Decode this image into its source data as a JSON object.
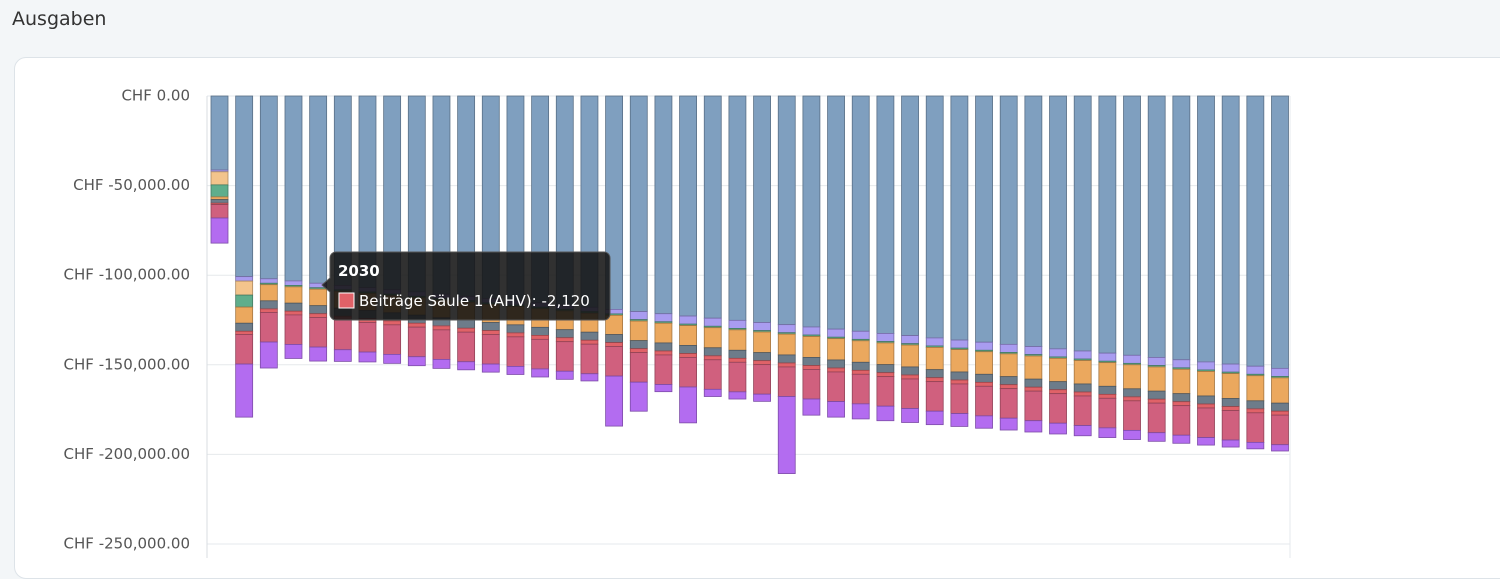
{
  "header": {
    "title": "Ausgaben"
  },
  "chart_data": {
    "type": "stacked-bar",
    "categories": [
      null,
      null,
      null,
      null,
      "2030",
      null,
      null,
      null,
      null,
      null,
      null,
      null,
      null,
      null,
      null,
      null,
      null,
      null,
      null,
      null,
      null,
      null,
      null,
      null,
      null,
      null,
      null,
      null,
      null,
      null,
      null,
      null,
      null,
      null,
      null,
      null,
      null,
      null,
      null,
      null,
      null,
      null,
      null,
      null
    ],
    "ylim": [
      -250000,
      0
    ],
    "yticks": [
      {
        "value": 0,
        "label": "CHF 0.00"
      },
      {
        "value": -50000,
        "label": "CHF -50,000.00"
      },
      {
        "value": -100000,
        "label": "CHF -100,000.00"
      },
      {
        "value": -150000,
        "label": "CHF -150,000.00"
      },
      {
        "value": -200000,
        "label": "CHF -200,000.00"
      },
      {
        "value": -250000,
        "label": "CHF -250,000.00"
      }
    ],
    "grid": true,
    "series": [
      {
        "color": "#7f9fbf",
        "values": [
          -41300,
          -100800,
          -102000,
          -103200,
          -104500,
          -105700,
          -106900,
          -108100,
          -109300,
          -110600,
          -111800,
          -113000,
          -114200,
          -115400,
          -116600,
          -117900,
          -119100,
          -120300,
          -121500,
          -122800,
          -124000,
          -125200,
          -126400,
          -127600,
          -128900,
          -130100,
          -131300,
          -132500,
          -133700,
          -135000,
          -136200,
          -137400,
          -138600,
          -139800,
          -141100,
          -142300,
          -143500,
          -144700,
          -145900,
          -147200,
          -148400,
          -149600,
          -150800,
          -152000
        ]
      },
      {
        "color": "#a99cf0",
        "values": [
          -1000,
          -2500,
          -2500,
          -2500,
          -2500,
          -2500,
          -2500,
          -2500,
          -2500,
          -2500,
          -2500,
          -2500,
          -2500,
          -2500,
          -2500,
          -2500,
          -2500,
          -4500,
          -4500,
          -4500,
          -4500,
          -4500,
          -4500,
          -4500,
          -4500,
          -4500,
          -4500,
          -4500,
          -4500,
          -4500,
          -4500,
          -4500,
          -4500,
          -4500,
          -4500,
          -4500,
          -4500,
          -4500,
          -4500,
          -4500,
          -4500,
          -4500,
          -4500,
          -4500
        ]
      },
      {
        "color": "#f3c48c",
        "values": [
          -7300,
          -7800,
          0,
          0,
          0,
          0,
          0,
          0,
          0,
          0,
          0,
          0,
          0,
          0,
          0,
          0,
          0,
          0,
          0,
          0,
          0,
          0,
          0,
          0,
          0,
          0,
          0,
          0,
          0,
          0,
          0,
          0,
          0,
          0,
          0,
          0,
          0,
          0,
          0,
          0,
          0,
          0,
          0,
          0
        ]
      },
      {
        "color": "#5fae8c",
        "values": [
          -6700,
          -6700,
          -800,
          -800,
          -800,
          -800,
          -800,
          -800,
          -800,
          -800,
          -800,
          -800,
          -800,
          -800,
          -800,
          -800,
          -800,
          -800,
          -800,
          -800,
          -800,
          -800,
          -800,
          -800,
          -800,
          -800,
          -800,
          -800,
          -800,
          -800,
          -800,
          -800,
          -800,
          -800,
          -800,
          -800,
          -800,
          -800,
          -800,
          -800,
          -800,
          -800,
          -800,
          -800
        ]
      },
      {
        "color": "#eba85e",
        "values": [
          -1500,
          -9000,
          -9000,
          -9100,
          -9200,
          -9400,
          -9500,
          -9600,
          -9700,
          -9900,
          -10000,
          -10100,
          -10200,
          -10400,
          -10500,
          -10600,
          -10700,
          -10900,
          -11000,
          -11100,
          -11200,
          -11400,
          -11500,
          -11600,
          -11700,
          -11900,
          -12000,
          -12100,
          -12200,
          -12400,
          -12500,
          -12600,
          -12700,
          -12900,
          -13000,
          -13100,
          -13200,
          -13400,
          -13500,
          -13600,
          -13700,
          -13900,
          -14000,
          -14100
        ]
      },
      {
        "color": "#6d7c8a",
        "values": [
          -2000,
          -4500,
          -4500,
          -4500,
          -4500,
          -4500,
          -4500,
          -4500,
          -4500,
          -4500,
          -4500,
          -4500,
          -4500,
          -4500,
          -4500,
          -4500,
          -4500,
          -4500,
          -4500,
          -4500,
          -4500,
          -4500,
          -4500,
          -4500,
          -4500,
          -4500,
          -4500,
          -4500,
          -4500,
          -4500,
          -4500,
          -4500,
          -4500,
          -4500,
          -4500,
          -4500,
          -4500,
          -4500,
          -4500,
          -4500,
          -4500,
          -4500,
          -4500,
          -4500
        ]
      },
      {
        "name": "Beiträge Säule 1 (AHV)",
        "color": "#e06268",
        "values": [
          -800,
          -1800,
          -2000,
          -2060,
          -2120,
          -2200,
          -2200,
          -2200,
          -2200,
          -2200,
          -2200,
          -2200,
          -2200,
          -2200,
          -2200,
          -2200,
          -2200,
          -2200,
          -2200,
          -2200,
          -2200,
          -2200,
          -2200,
          -2200,
          -2200,
          -2200,
          -2200,
          -2200,
          -2200,
          -2200,
          -2200,
          -2200,
          -2200,
          -2200,
          -2200,
          -2200,
          -2200,
          -2200,
          -2200,
          -2200,
          -2200,
          -2200,
          -2200,
          -2200
        ],
        "value_labels": [
          null,
          null,
          null,
          null,
          "-2,120",
          null,
          null,
          null,
          null,
          null,
          null,
          null,
          null,
          null,
          null,
          null,
          null,
          null,
          null,
          null,
          null,
          null,
          null,
          null,
          null,
          null,
          null,
          null,
          null,
          null,
          null,
          null,
          null,
          null,
          null,
          null,
          null,
          null,
          null,
          null,
          null,
          null,
          null,
          null
        ]
      },
      {
        "color": "#d0607e",
        "values": [
          -7500,
          -16500,
          -16500,
          -16500,
          -16500,
          -16500,
          -16500,
          -16500,
          -16500,
          -16500,
          -16500,
          -16500,
          -16500,
          -16500,
          -16500,
          -16500,
          -16500,
          -16500,
          -16500,
          -16500,
          -16500,
          -16500,
          -16500,
          -16500,
          -16500,
          -16500,
          -16500,
          -16500,
          -16500,
          -16500,
          -16500,
          -16500,
          -16500,
          -16500,
          -16500,
          -16500,
          -16500,
          -16500,
          -16500,
          -16500,
          -16500,
          -16500,
          -16500,
          -16500
        ]
      },
      {
        "color": "#b36cf0",
        "values": [
          -14000,
          -29600,
          -14500,
          -7800,
          -7800,
          -6500,
          -5500,
          -5000,
          -5000,
          -5000,
          -4500,
          -4500,
          -4500,
          -4500,
          -4500,
          -4000,
          -27900,
          -16200,
          -4000,
          -20000,
          -4000,
          -4000,
          -4000,
          -43000,
          -9000,
          -8700,
          -8400,
          -8100,
          -7800,
          -7500,
          -7200,
          -6900,
          -6600,
          -6300,
          -6000,
          -5700,
          -5400,
          -5100,
          -4800,
          -4500,
          -4200,
          -3900,
          -3600,
          -3500
        ]
      }
    ]
  }
}
